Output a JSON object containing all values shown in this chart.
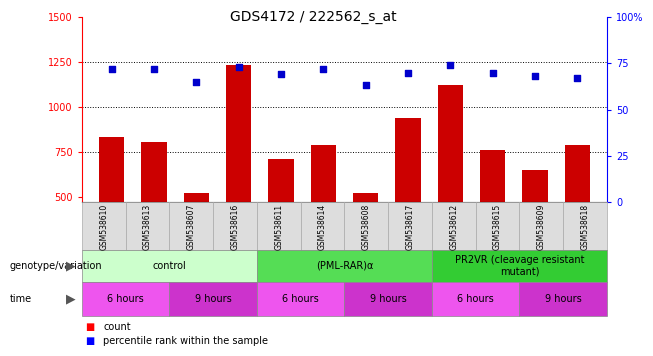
{
  "title": "GDS4172 / 222562_s_at",
  "samples": [
    "GSM538610",
    "GSM538613",
    "GSM538607",
    "GSM538616",
    "GSM538611",
    "GSM538614",
    "GSM538608",
    "GSM538617",
    "GSM538612",
    "GSM538615",
    "GSM538609",
    "GSM538618"
  ],
  "counts": [
    830,
    805,
    520,
    1230,
    710,
    790,
    520,
    940,
    1120,
    760,
    650,
    790
  ],
  "percentiles": [
    72,
    72,
    65,
    73,
    69,
    72,
    63,
    70,
    74,
    70,
    68,
    67
  ],
  "ylim_left": [
    470,
    1500
  ],
  "ylim_right": [
    0,
    100
  ],
  "yticks_left": [
    500,
    750,
    1000,
    1250,
    1500
  ],
  "yticks_right": [
    0,
    25,
    50,
    75,
    100
  ],
  "bar_color": "#cc0000",
  "dot_color": "#0000cc",
  "genotype_groups": [
    {
      "label": "control",
      "start": 0,
      "end": 4,
      "color": "#ccffcc"
    },
    {
      "label": "(PML-RAR)α",
      "start": 4,
      "end": 8,
      "color": "#55dd55"
    },
    {
      "label": "PR2VR (cleavage resistant\nmutant)",
      "start": 8,
      "end": 12,
      "color": "#33cc33"
    }
  ],
  "time_groups": [
    {
      "label": "6 hours",
      "start": 0,
      "end": 2,
      "color": "#ee55ee"
    },
    {
      "label": "9 hours",
      "start": 2,
      "end": 4,
      "color": "#cc33cc"
    },
    {
      "label": "6 hours",
      "start": 4,
      "end": 6,
      "color": "#ee55ee"
    },
    {
      "label": "9 hours",
      "start": 6,
      "end": 8,
      "color": "#cc33cc"
    },
    {
      "label": "6 hours",
      "start": 8,
      "end": 10,
      "color": "#ee55ee"
    },
    {
      "label": "9 hours",
      "start": 10,
      "end": 12,
      "color": "#cc33cc"
    }
  ],
  "legend_count_label": "count",
  "legend_pct_label": "percentile rank within the sample",
  "xlabel_genotype": "genotype/variation",
  "xlabel_time": "time",
  "sample_box_color": "#dddddd",
  "sample_box_edge": "#aaaaaa"
}
